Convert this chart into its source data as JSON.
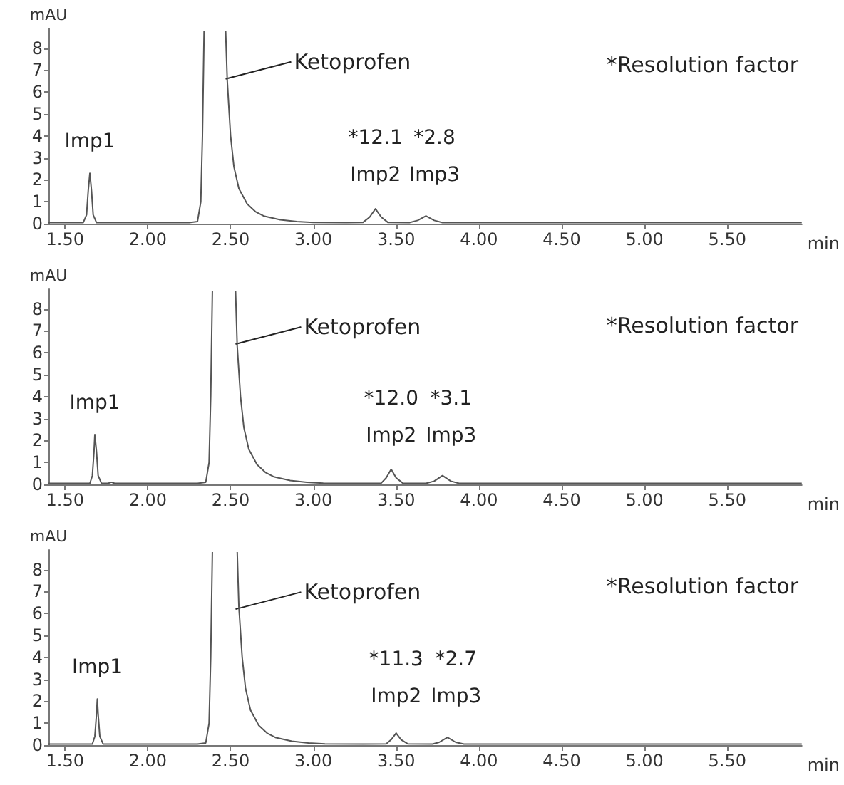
{
  "chart_data": [
    {
      "type": "line",
      "xlabel": "min",
      "ylabel": "mAU",
      "marker": "none",
      "line_style": "solid",
      "grid": false,
      "xlim": [
        1.4,
        5.95
      ],
      "ylim": [
        0,
        8.9
      ],
      "xticks": [
        {
          "value": 1.5,
          "label": "1.50"
        },
        {
          "value": 2,
          "label": "2.00"
        },
        {
          "value": 2.5,
          "label": "2.50"
        },
        {
          "value": 3,
          "label": "3.00"
        },
        {
          "value": 3.5,
          "label": "3.50"
        },
        {
          "value": 4,
          "label": "4.00"
        },
        {
          "value": 4.5,
          "label": "4.50"
        },
        {
          "value": 5,
          "label": "5.00"
        },
        {
          "value": 5.5,
          "label": "5.50"
        }
      ],
      "yticks": [
        0,
        1,
        2,
        3,
        4,
        5,
        6,
        7,
        8
      ],
      "series": [
        {
          "color": "#555555",
          "x": [
            1.4,
            1.55,
            1.61,
            1.63,
            1.64,
            1.65,
            1.66,
            1.67,
            1.69,
            1.75,
            2.0,
            2.25,
            2.3,
            2.32,
            2.33,
            2.34,
            2.4,
            2.47,
            2.48,
            2.5,
            2.52,
            2.55,
            2.6,
            2.65,
            2.7,
            2.8,
            2.9,
            3.0,
            3.2,
            3.3,
            3.34,
            3.375,
            3.41,
            3.45,
            3.58,
            3.63,
            3.68,
            3.73,
            3.78,
            4.0,
            4.5,
            5.0,
            5.5,
            5.95
          ],
          "values": [
            0.05,
            0.05,
            0.05,
            0.4,
            1.5,
            2.3,
            1.5,
            0.4,
            0.05,
            0.06,
            0.05,
            0.05,
            0.1,
            1.0,
            4.0,
            8.8,
            null,
            8.8,
            6.5,
            4.0,
            2.6,
            1.6,
            0.9,
            0.55,
            0.35,
            0.18,
            0.1,
            0.06,
            0.05,
            0.06,
            0.3,
            0.68,
            0.3,
            0.06,
            0.05,
            0.15,
            0.35,
            0.15,
            0.05,
            0.05,
            0.05,
            0.05,
            0.05,
            0.05
          ]
        }
      ],
      "annotations": [
        {
          "text": "Ketoprofen",
          "x": 2.47,
          "y": 6.6
        },
        {
          "text": "Imp1",
          "x": 1.65,
          "y": 2.3
        },
        {
          "text": "Imp2",
          "x": 3.375,
          "y": 0.68
        },
        "*12.1",
        {
          "text": "Imp3",
          "x": 3.68,
          "y": 0.35
        },
        "*2.8",
        "*Resolution factor"
      ]
    },
    {
      "type": "line",
      "xlabel": "min",
      "ylabel": "mAU",
      "marker": "none",
      "line_style": "solid",
      "grid": false,
      "xlim": [
        1.4,
        5.95
      ],
      "ylim": [
        0,
        8.9
      ],
      "xticks": [
        {
          "value": 1.5,
          "label": "1.50"
        },
        {
          "value": 2,
          "label": "2.00"
        },
        {
          "value": 2.5,
          "label": "2.50"
        },
        {
          "value": 3,
          "label": "3.00"
        },
        {
          "value": 3.5,
          "label": "3.50"
        },
        {
          "value": 4,
          "label": "4.00"
        },
        {
          "value": 4.5,
          "label": "4.50"
        },
        {
          "value": 5,
          "label": "5.00"
        },
        {
          "value": 5.5,
          "label": "5.50"
        }
      ],
      "yticks": [
        0,
        1,
        2,
        3,
        4,
        5,
        6,
        7,
        8
      ],
      "series": [
        {
          "color": "#555555",
          "x": [
            1.4,
            1.6,
            1.65,
            1.665,
            1.675,
            1.68,
            1.69,
            1.7,
            1.72,
            1.76,
            1.78,
            1.8,
            2.0,
            2.3,
            2.35,
            2.37,
            2.38,
            2.39,
            2.46,
            2.53,
            2.54,
            2.56,
            2.58,
            2.61,
            2.66,
            2.71,
            2.76,
            2.86,
            2.96,
            3.06,
            3.3,
            3.41,
            3.44,
            3.47,
            3.5,
            3.54,
            3.68,
            3.73,
            3.78,
            3.83,
            3.88,
            4.0,
            4.5,
            5.0,
            5.5,
            5.95
          ],
          "values": [
            0.05,
            0.05,
            0.05,
            0.4,
            1.5,
            2.27,
            1.5,
            0.4,
            0.05,
            0.05,
            0.1,
            0.05,
            0.05,
            0.05,
            0.1,
            1.0,
            4.0,
            8.8,
            null,
            8.8,
            6.3,
            4.0,
            2.6,
            1.6,
            0.9,
            0.55,
            0.35,
            0.18,
            0.1,
            0.06,
            0.05,
            0.06,
            0.3,
            0.69,
            0.3,
            0.06,
            0.05,
            0.15,
            0.4,
            0.15,
            0.05,
            0.05,
            0.05,
            0.05,
            0.05,
            0.05
          ]
        }
      ],
      "annotations": [
        {
          "text": "Ketoprofen",
          "x": 2.53,
          "y": 6.4
        },
        {
          "text": "Imp1",
          "x": 1.68,
          "y": 2.27
        },
        {
          "text": "Imp2",
          "x": 3.47,
          "y": 0.69
        },
        "*12.0",
        {
          "text": "Imp3",
          "x": 3.78,
          "y": 0.4
        },
        "*3.1",
        "*Resolution factor"
      ]
    },
    {
      "type": "line",
      "xlabel": "min",
      "ylabel": "mAU",
      "marker": "none",
      "line_style": "solid",
      "grid": false,
      "xlim": [
        1.4,
        5.95
      ],
      "ylim": [
        0,
        8.9
      ],
      "xticks": [
        {
          "value": 1.5,
          "label": "1.50"
        },
        {
          "value": 2,
          "label": "2.00"
        },
        {
          "value": 2.5,
          "label": "2.50"
        },
        {
          "value": 3,
          "label": "3.00"
        },
        {
          "value": 3.5,
          "label": "3.50"
        },
        {
          "value": 4,
          "label": "4.00"
        },
        {
          "value": 4.5,
          "label": "4.50"
        },
        {
          "value": 5,
          "label": "5.00"
        },
        {
          "value": 5.5,
          "label": "5.50"
        }
      ],
      "yticks": [
        0,
        1,
        2,
        3,
        4,
        5,
        6,
        7,
        8
      ],
      "series": [
        {
          "color": "#555555",
          "x": [
            1.4,
            1.62,
            1.665,
            1.68,
            1.69,
            1.695,
            1.7,
            1.71,
            1.73,
            2.0,
            2.3,
            2.35,
            2.37,
            2.38,
            2.39,
            2.46,
            2.54,
            2.55,
            2.57,
            2.59,
            2.62,
            2.67,
            2.72,
            2.77,
            2.87,
            2.97,
            3.07,
            3.3,
            3.44,
            3.47,
            3.5,
            3.53,
            3.57,
            3.72,
            3.76,
            3.81,
            3.86,
            3.91,
            4.0,
            4.5,
            5.0,
            5.5,
            5.95
          ],
          "values": [
            0.05,
            0.05,
            0.05,
            0.4,
            1.4,
            2.1,
            1.4,
            0.4,
            0.05,
            0.05,
            0.05,
            0.1,
            1.0,
            4.0,
            8.8,
            null,
            8.8,
            6.3,
            4.0,
            2.6,
            1.6,
            0.9,
            0.55,
            0.35,
            0.18,
            0.1,
            0.06,
            0.05,
            0.06,
            0.25,
            0.55,
            0.25,
            0.06,
            0.05,
            0.13,
            0.35,
            0.13,
            0.05,
            0.05,
            0.05,
            0.05,
            0.05,
            0.05
          ]
        }
      ],
      "annotations": [
        {
          "text": "Ketoprofen",
          "x": 2.53,
          "y": 6.2
        },
        {
          "text": "Imp1",
          "x": 1.695,
          "y": 2.1
        },
        {
          "text": "Imp2",
          "x": 3.5,
          "y": 0.55
        },
        "*11.3",
        {
          "text": "Imp3",
          "x": 3.81,
          "y": 0.35
        },
        "*2.7",
        "*Resolution factor"
      ]
    }
  ]
}
